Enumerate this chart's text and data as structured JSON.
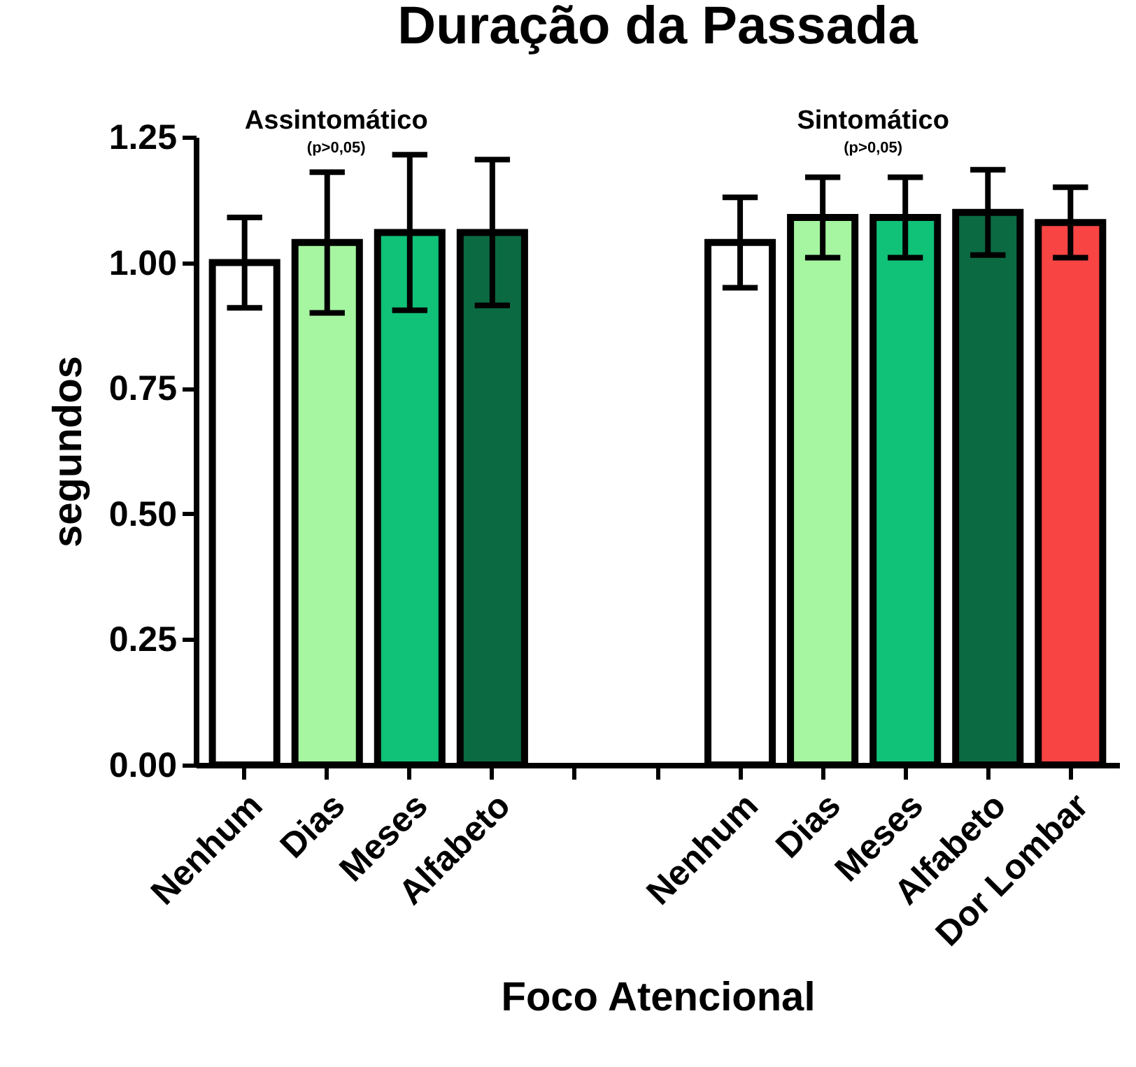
{
  "chart_data": {
    "type": "bar",
    "title": "Duração da Passada",
    "xlabel": "Foco Atencional",
    "ylabel": "segundos",
    "categories": [
      "Nenhum",
      "Dias",
      "Meses",
      "Alfabeto",
      null,
      null,
      "Nenhum",
      "Dias",
      "Meses",
      "Alfabeto",
      "Dor Lombar"
    ],
    "values": [
      1.0,
      1.04,
      1.06,
      1.06,
      null,
      null,
      1.04,
      1.09,
      1.09,
      1.1,
      1.08
    ],
    "errors": [
      0.09,
      0.14,
      0.155,
      0.145,
      null,
      null,
      0.09,
      0.08,
      0.08,
      0.085,
      0.07
    ],
    "colors": [
      "#ffffff",
      "#a6f5a0",
      "#10c178",
      "#0b6a42",
      "#ffffff",
      "#ffffff",
      "#ffffff",
      "#a6f5a0",
      "#10c178",
      "#0b6a42",
      "#f94444"
    ],
    "ylim": [
      0,
      1.25
    ],
    "yticks": [
      {
        "value": 0,
        "label": "0.00"
      },
      {
        "value": 0.25,
        "label": "0.25"
      },
      {
        "value": 0.5,
        "label": "0.50"
      },
      {
        "value": 0.75,
        "label": "0.75"
      },
      {
        "value": 1,
        "label": "1.00"
      },
      {
        "value": 1.25,
        "label": "1.25"
      }
    ],
    "annotations": [
      "Assintomático",
      "(p>0,05)",
      "Sintomático",
      "(p>0,05)"
    ],
    "grid": false,
    "legend": false
  }
}
